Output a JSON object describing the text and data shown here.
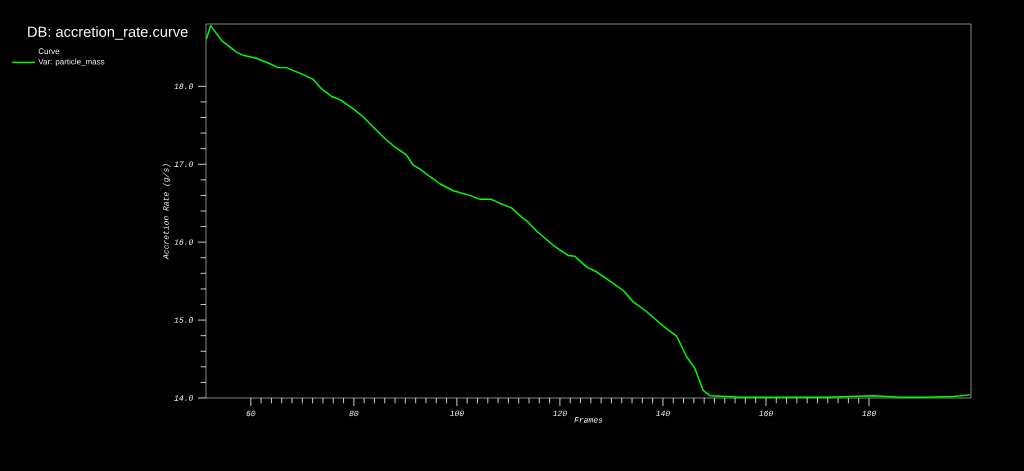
{
  "chart_data": {
    "type": "line",
    "title": "DB: accretion_rate.curve",
    "xlabel": "Frames",
    "ylabel": "Accretion Rate (g/s)",
    "legend_title": "Curve",
    "legend": "top left",
    "x": [
      51.4,
      52.2,
      54.3,
      57.2,
      58.5,
      61.1,
      63.7,
      65.3,
      66.9,
      70.2,
      72.1,
      73.7,
      75.7,
      77.3,
      79.9,
      81.8,
      83.7,
      85.7,
      87.6,
      90.2,
      91.5,
      92.8,
      94.8,
      96.7,
      99.3,
      102.5,
      104.5,
      106.7,
      108.3,
      110.6,
      112.6,
      113.8,
      115.5,
      118.7,
      121.6,
      122.9,
      125.2,
      127.1,
      129.1,
      132.3,
      134.3,
      136.8,
      140.1,
      142.7,
      144.6,
      146.2,
      147.8,
      149.1,
      152.4,
      154.9,
      158.8,
      165.2,
      171.8,
      180.8,
      186.0,
      190.9,
      196.4,
      199.6
    ],
    "series": [
      {
        "name": "Var: particle_mass",
        "color": "#00ff00",
        "values": [
          18.61,
          18.78,
          18.59,
          18.44,
          18.4,
          18.36,
          18.29,
          18.24,
          18.24,
          18.15,
          18.09,
          17.97,
          17.87,
          17.83,
          17.71,
          17.61,
          17.48,
          17.35,
          17.24,
          17.12,
          16.99,
          16.94,
          16.84,
          16.75,
          16.66,
          16.6,
          16.55,
          16.55,
          16.5,
          16.44,
          16.32,
          16.26,
          16.14,
          15.96,
          15.83,
          15.82,
          15.68,
          15.62,
          15.53,
          15.38,
          15.23,
          15.11,
          14.92,
          14.79,
          14.53,
          14.38,
          14.1,
          14.03,
          14.02,
          14.01,
          14.01,
          14.01,
          14.01,
          14.03,
          14.01,
          14.01,
          14.02,
          14.04
        ]
      }
    ],
    "xlim": [
      51.3,
      199.8
    ],
    "ylim": [
      14.0,
      18.8
    ],
    "xticks": [
      60,
      80,
      100,
      120,
      140,
      160,
      180
    ],
    "yticks": [
      {
        "value": 14,
        "label": "14.0"
      },
      {
        "value": 15,
        "label": "15.0"
      },
      {
        "value": 16,
        "label": "16.0"
      },
      {
        "value": 17,
        "label": "17.0"
      },
      {
        "value": 18,
        "label": "18.0"
      }
    ]
  }
}
